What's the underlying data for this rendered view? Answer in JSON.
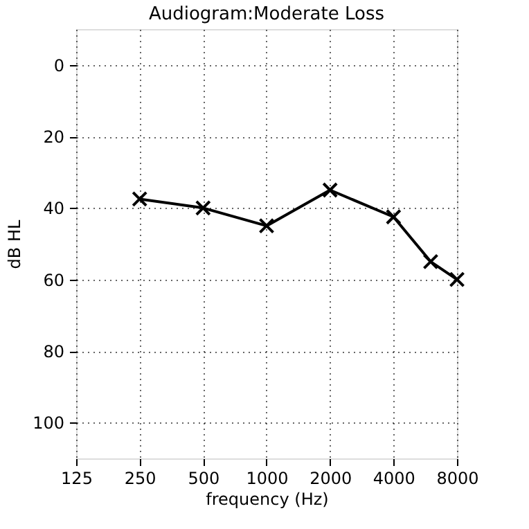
{
  "chart_data": {
    "type": "line",
    "title": "Audiogram:Moderate Loss",
    "xlabel": "frequency (Hz)",
    "ylabel": "dB HL",
    "x": [
      250,
      500,
      1000,
      2000,
      4000,
      6000,
      8000
    ],
    "series": [
      {
        "color": "#000000",
        "values": [
          37.5,
          40,
          45,
          35,
          42.5,
          55,
          60
        ]
      }
    ],
    "log": "x",
    "xlim": [
      125,
      8000
    ],
    "xticks": [
      125,
      250,
      500,
      1000,
      2000,
      4000,
      8000
    ],
    "ylim": [
      110,
      -10
    ],
    "yticks": [
      0,
      20,
      40,
      60,
      80,
      100
    ],
    "grid": true,
    "marker": "cross",
    "line_style": "solid"
  }
}
